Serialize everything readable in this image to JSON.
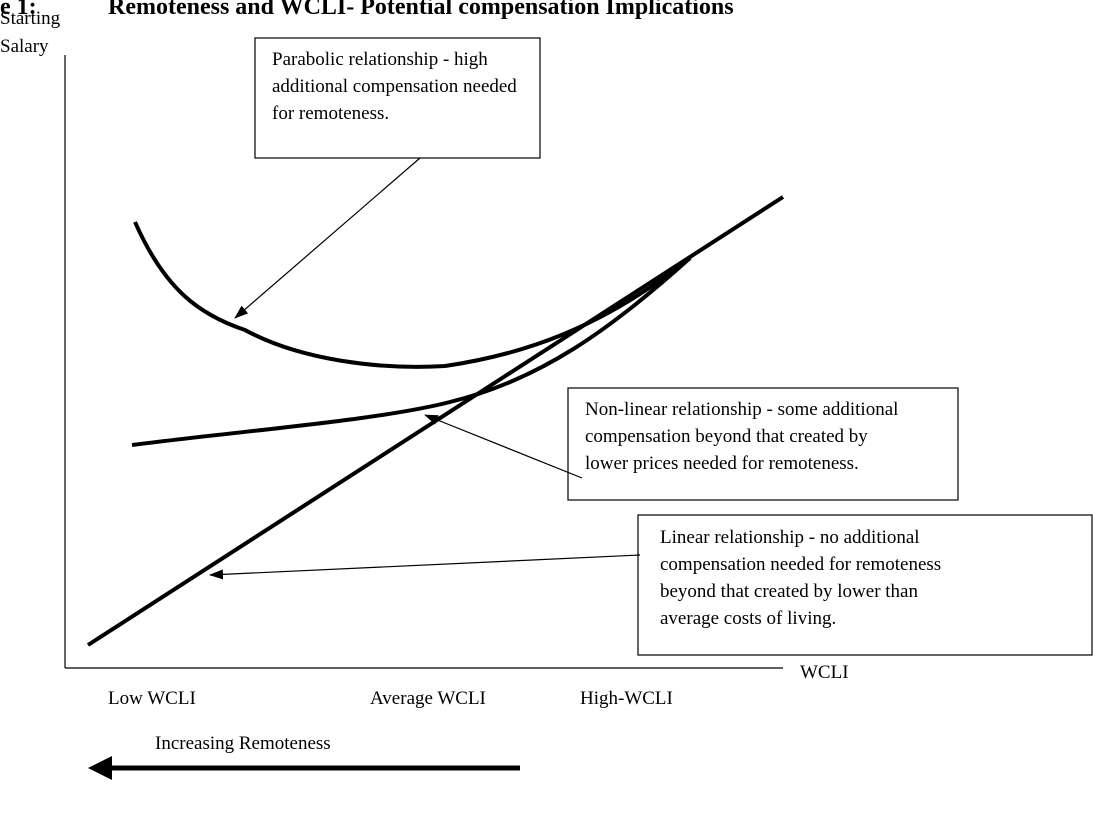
{
  "title_prefix": "e 1:",
  "title": "Remoteness and WCLI- Potential compensation Implications",
  "y_axis_label": [
    "Starting",
    "Salary"
  ],
  "x_axis_label": "WCLI",
  "x_labels": [
    "Low WCLI",
    "Average WCLI",
    "High-WCLI"
  ],
  "direction_label": "Increasing Remoteness",
  "callouts": [
    {
      "lines": [
        "Parabolic relationship - high",
        "additional compensation needed",
        "for remoteness."
      ]
    },
    {
      "lines": [
        "Non-linear relationship - some additional",
        "compensation beyond that created by",
        "lower prices needed for remoteness."
      ]
    },
    {
      "lines": [
        "Linear relationship - no additional",
        "compensation needed for remoteness",
        "beyond that created by lower than",
        "average costs of living."
      ]
    }
  ]
}
